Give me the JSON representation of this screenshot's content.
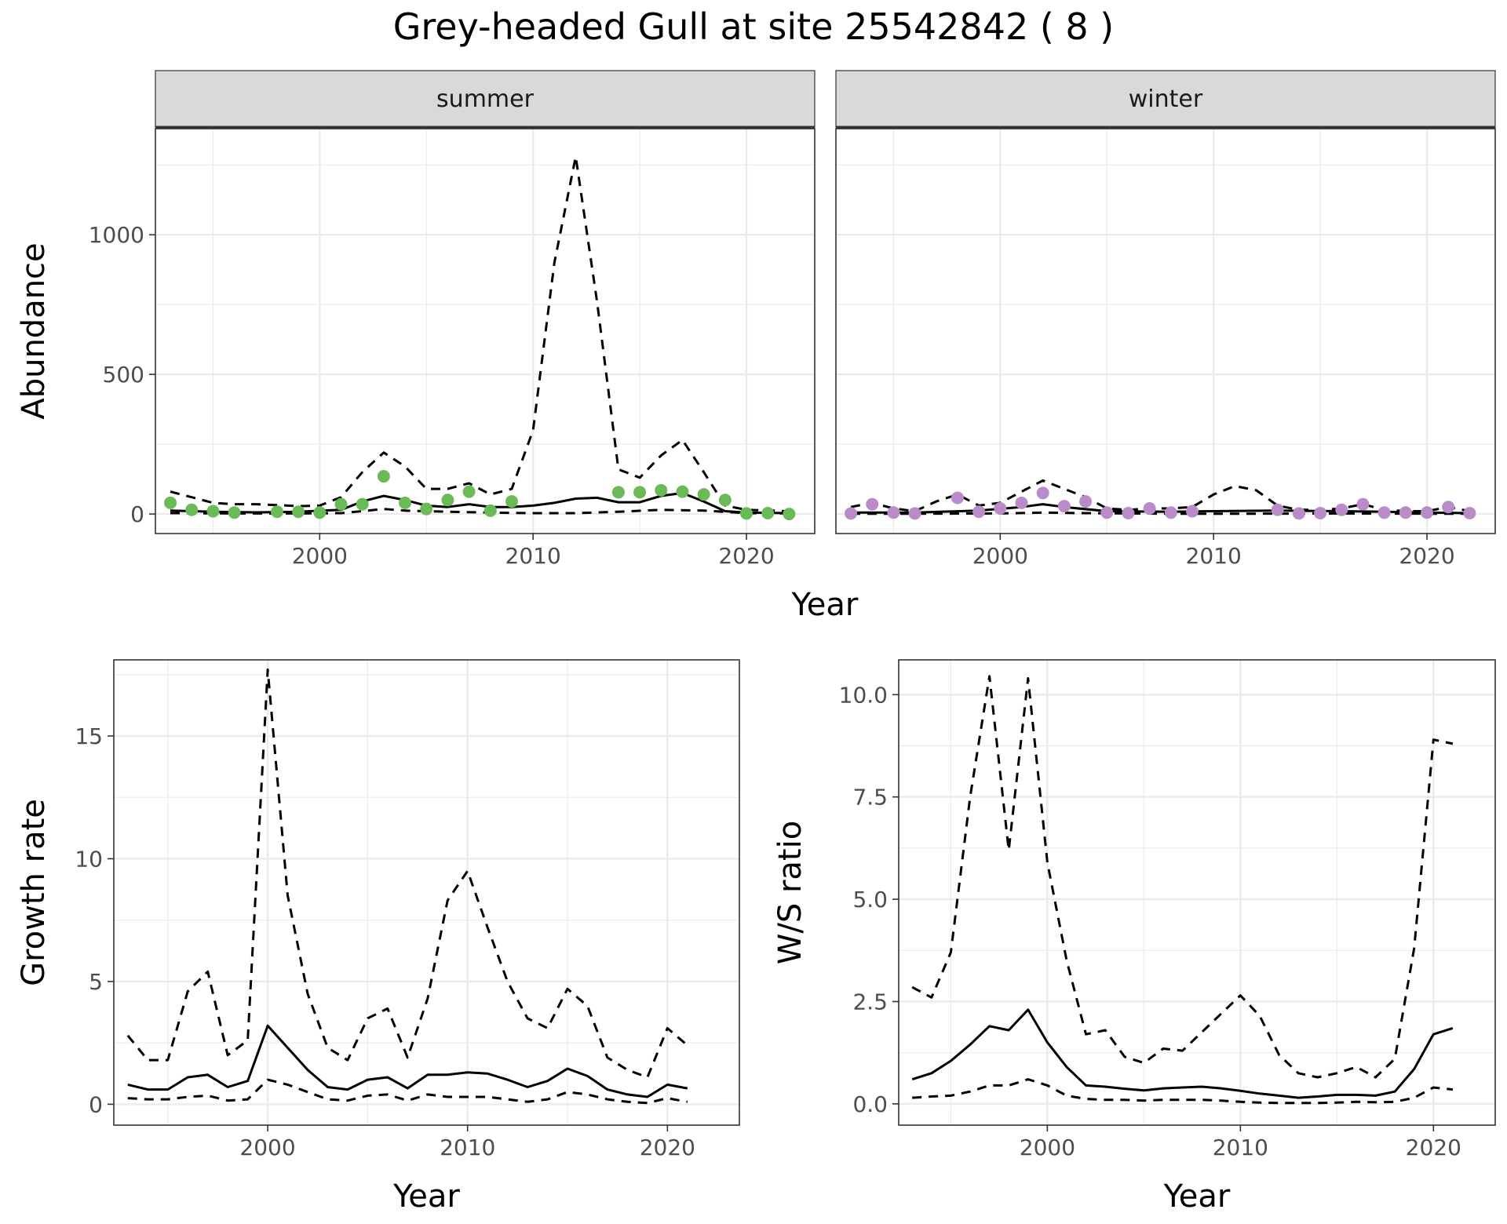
{
  "title": "Grey-headed Gull at site 25542842 ( 8 )",
  "colors": {
    "summer_points": "#6aba58",
    "winter_points": "#b98cc9",
    "lines": "#000000",
    "grid": "#ebebeb",
    "strip_fill": "#d9d9d9"
  },
  "chart_data": [
    {
      "type": "line",
      "facet": "summer",
      "xlabel": "Year",
      "ylabel": "Abundance",
      "xlim": [
        1992.3,
        2023.2
      ],
      "ylim": [
        -70,
        1380
      ],
      "xticks": [
        "2000",
        "2010",
        "2020"
      ],
      "yticks": [
        "0",
        "500",
        "1000"
      ],
      "grid": true,
      "points": {
        "x": [
          1993,
          1994,
          1995,
          1996,
          1998,
          1999,
          2000,
          2001,
          2002,
          2003,
          2004,
          2005,
          2006,
          2007,
          2008,
          2009,
          2014,
          2015,
          2016,
          2017,
          2018,
          2019,
          2020,
          2021,
          2022
        ],
        "y": [
          40,
          15,
          10,
          5,
          8,
          8,
          5,
          35,
          35,
          135,
          40,
          18,
          50,
          80,
          12,
          45,
          78,
          78,
          85,
          80,
          70,
          50,
          2,
          3,
          0
        ]
      },
      "series": [
        {
          "style": "solid",
          "x": [
            1993,
            1995,
            1997,
            1999,
            2001,
            2002,
            2003,
            2004,
            2005,
            2006,
            2007,
            2008,
            2009,
            2010,
            2011,
            2012,
            2013,
            2014,
            2015,
            2016,
            2017,
            2018,
            2019,
            2020,
            2022
          ],
          "y": [
            12,
            8,
            6,
            8,
            15,
            45,
            65,
            50,
            30,
            25,
            35,
            25,
            25,
            30,
            40,
            55,
            58,
            42,
            42,
            65,
            75,
            45,
            10,
            5,
            3
          ]
        },
        {
          "style": "dashed",
          "x": [
            1993,
            1994,
            1995,
            1996,
            1997,
            1998,
            1999,
            2000,
            2001,
            2002,
            2003,
            2004,
            2005,
            2006,
            2007,
            2008,
            2009,
            2010,
            2011,
            2012,
            2013,
            2014,
            2015,
            2016,
            2017,
            2018,
            2019,
            2020,
            2022
          ],
          "y": [
            80,
            60,
            40,
            35,
            35,
            32,
            28,
            30,
            60,
            150,
            220,
            170,
            90,
            90,
            110,
            70,
            90,
            300,
            900,
            1280,
            760,
            160,
            130,
            210,
            265,
            150,
            30,
            15,
            10
          ]
        },
        {
          "style": "dashed",
          "x": [
            1993,
            1996,
            1999,
            2001,
            2002,
            2003,
            2004,
            2006,
            2008,
            2010,
            2012,
            2014,
            2016,
            2018,
            2020,
            2022
          ],
          "y": [
            3,
            2,
            2,
            3,
            10,
            18,
            12,
            8,
            5,
            3,
            3,
            8,
            15,
            12,
            3,
            2
          ]
        }
      ]
    },
    {
      "type": "line",
      "facet": "winter",
      "xlabel": "Year",
      "ylabel": "Abundance",
      "xlim": [
        1992.3,
        2023.2
      ],
      "ylim": [
        -70,
        1380
      ],
      "xticks": [
        "2000",
        "2010",
        "2020"
      ],
      "yticks": [
        "0",
        "500",
        "1000"
      ],
      "grid": true,
      "points": {
        "x": [
          1993,
          1994,
          1995,
          1996,
          1998,
          1999,
          2000,
          2001,
          2002,
          2003,
          2004,
          2005,
          2006,
          2007,
          2008,
          2009,
          2013,
          2014,
          2015,
          2016,
          2017,
          2018,
          2019,
          2020,
          2021,
          2022
        ],
        "y": [
          2,
          35,
          5,
          2,
          58,
          8,
          20,
          40,
          75,
          28,
          45,
          5,
          3,
          20,
          5,
          10,
          15,
          2,
          3,
          15,
          35,
          5,
          5,
          5,
          25,
          3
        ]
      },
      "series": [
        {
          "style": "solid",
          "x": [
            1993,
            1996,
            1999,
            2001,
            2002,
            2003,
            2005,
            2008,
            2010,
            2013,
            2016,
            2018,
            2020,
            2022
          ],
          "y": [
            5,
            5,
            12,
            25,
            35,
            25,
            10,
            8,
            10,
            12,
            10,
            8,
            5,
            3
          ]
        },
        {
          "style": "dashed",
          "x": [
            1993,
            1994,
            1995,
            1996,
            1997,
            1998,
            1999,
            2000,
            2001,
            2002,
            2003,
            2004,
            2005,
            2006,
            2007,
            2008,
            2009,
            2010,
            2011,
            2012,
            2013,
            2014,
            2015,
            2016,
            2017,
            2018,
            2019,
            2020,
            2021,
            2022
          ],
          "y": [
            25,
            40,
            20,
            10,
            45,
            70,
            30,
            40,
            80,
            120,
            90,
            60,
            20,
            15,
            20,
            20,
            25,
            70,
            100,
            85,
            30,
            15,
            15,
            20,
            35,
            15,
            10,
            10,
            25,
            10
          ]
        },
        {
          "style": "dashed",
          "x": [
            1993,
            1996,
            2000,
            2002,
            2004,
            2008,
            2012,
            2016,
            2020,
            2022
          ],
          "y": [
            1,
            1,
            2,
            5,
            3,
            1,
            1,
            2,
            1,
            1
          ]
        }
      ]
    },
    {
      "type": "line",
      "xlabel": "Year",
      "ylabel": "Growth rate",
      "xlim": [
        1992.3,
        2023.6
      ],
      "ylim": [
        -0.85,
        18.1
      ],
      "xticks": [
        "2000",
        "2010",
        "2020"
      ],
      "yticks": [
        "0",
        "5",
        "10",
        "15"
      ],
      "grid": true,
      "series": [
        {
          "style": "solid",
          "x": [
            1993,
            1994,
            1995,
            1996,
            1997,
            1998,
            1999,
            2000,
            2001,
            2002,
            2003,
            2004,
            2005,
            2006,
            2007,
            2008,
            2009,
            2010,
            2011,
            2012,
            2013,
            2014,
            2015,
            2016,
            2017,
            2018,
            2019,
            2020,
            2021
          ],
          "y": [
            0.8,
            0.6,
            0.6,
            1.1,
            1.2,
            0.7,
            0.95,
            3.2,
            2.3,
            1.4,
            0.7,
            0.6,
            1.0,
            1.1,
            0.65,
            1.2,
            1.2,
            1.3,
            1.25,
            1.0,
            0.7,
            0.95,
            1.45,
            1.15,
            0.6,
            0.4,
            0.3,
            0.8,
            0.65
          ]
        },
        {
          "style": "dashed",
          "x": [
            1993,
            1994,
            1995,
            1996,
            1997,
            1998,
            1999,
            2000,
            2001,
            2002,
            2003,
            2004,
            2005,
            2006,
            2007,
            2008,
            2009,
            2010,
            2011,
            2012,
            2013,
            2014,
            2015,
            2016,
            2017,
            2018,
            2019,
            2020,
            2021
          ],
          "y": [
            2.8,
            1.8,
            1.8,
            4.6,
            5.4,
            2.0,
            2.6,
            17.7,
            8.5,
            4.5,
            2.3,
            1.8,
            3.5,
            3.9,
            1.9,
            4.3,
            8.3,
            9.5,
            7.2,
            5.0,
            3.5,
            3.1,
            4.7,
            4.0,
            1.9,
            1.4,
            1.1,
            3.1,
            2.4
          ]
        },
        {
          "style": "dashed",
          "x": [
            1993,
            1994,
            1995,
            1996,
            1997,
            1998,
            1999,
            2000,
            2001,
            2002,
            2003,
            2004,
            2005,
            2006,
            2007,
            2008,
            2009,
            2010,
            2011,
            2012,
            2013,
            2014,
            2015,
            2016,
            2017,
            2018,
            2019,
            2020,
            2021
          ],
          "y": [
            0.25,
            0.2,
            0.2,
            0.3,
            0.35,
            0.15,
            0.2,
            1.0,
            0.8,
            0.5,
            0.2,
            0.15,
            0.35,
            0.4,
            0.15,
            0.4,
            0.3,
            0.3,
            0.3,
            0.2,
            0.1,
            0.2,
            0.5,
            0.4,
            0.2,
            0.1,
            0.05,
            0.25,
            0.1
          ]
        }
      ]
    },
    {
      "type": "line",
      "xlabel": "Year",
      "ylabel": "W/S ratio",
      "xlim": [
        1992.3,
        2023.2
      ],
      "ylim": [
        -0.52,
        10.85
      ],
      "xticks": [
        "2000",
        "2010",
        "2020"
      ],
      "yticks": [
        "0.0",
        "2.5",
        "5.0",
        "7.5",
        "10.0"
      ],
      "grid": true,
      "series": [
        {
          "style": "solid",
          "x": [
            1993,
            1994,
            1995,
            1996,
            1997,
            1998,
            1999,
            2000,
            2001,
            2002,
            2003,
            2004,
            2005,
            2006,
            2007,
            2008,
            2009,
            2010,
            2011,
            2012,
            2013,
            2014,
            2015,
            2016,
            2017,
            2018,
            2019,
            2020,
            2021
          ],
          "y": [
            0.6,
            0.75,
            1.05,
            1.45,
            1.9,
            1.8,
            2.3,
            1.5,
            0.9,
            0.45,
            0.42,
            0.37,
            0.33,
            0.38,
            0.4,
            0.42,
            0.38,
            0.32,
            0.25,
            0.2,
            0.15,
            0.18,
            0.22,
            0.22,
            0.2,
            0.3,
            0.85,
            1.7,
            1.85
          ]
        },
        {
          "style": "dashed",
          "x": [
            1993,
            1994,
            1995,
            1996,
            1997,
            1998,
            1999,
            2000,
            2001,
            2002,
            2003,
            2004,
            2005,
            2006,
            2007,
            2008,
            2009,
            2010,
            2011,
            2012,
            2013,
            2014,
            2015,
            2016,
            2017,
            2018,
            2019,
            2020,
            2021
          ],
          "y": [
            2.85,
            2.6,
            3.7,
            7.5,
            10.45,
            6.2,
            10.4,
            5.9,
            3.5,
            1.7,
            1.8,
            1.15,
            1.0,
            1.35,
            1.3,
            1.75,
            2.2,
            2.65,
            2.15,
            1.2,
            0.75,
            0.65,
            0.75,
            0.9,
            0.65,
            1.1,
            3.8,
            8.9,
            8.8
          ]
        },
        {
          "style": "dashed",
          "x": [
            1993,
            1994,
            1995,
            1996,
            1997,
            1998,
            1999,
            2000,
            2001,
            2002,
            2003,
            2004,
            2005,
            2006,
            2007,
            2008,
            2009,
            2010,
            2011,
            2012,
            2013,
            2014,
            2015,
            2016,
            2017,
            2018,
            2019,
            2020,
            2021
          ],
          "y": [
            0.15,
            0.18,
            0.2,
            0.3,
            0.45,
            0.45,
            0.6,
            0.45,
            0.2,
            0.12,
            0.1,
            0.1,
            0.08,
            0.1,
            0.1,
            0.1,
            0.08,
            0.05,
            0.03,
            0.02,
            0.02,
            0.02,
            0.03,
            0.05,
            0.04,
            0.05,
            0.15,
            0.4,
            0.35
          ]
        }
      ]
    }
  ]
}
